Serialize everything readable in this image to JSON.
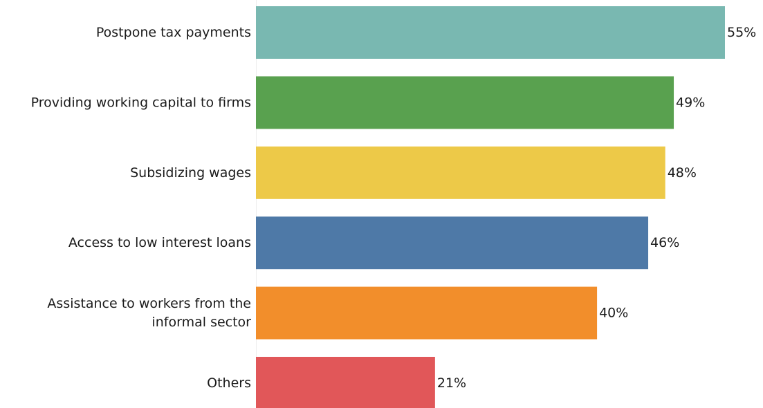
{
  "chart_data": {
    "type": "bar",
    "orientation": "horizontal",
    "title": "",
    "xlabel": "",
    "ylabel": "",
    "categories": [
      [
        "Postpone tax payments"
      ],
      [
        "Providing working capital to firms"
      ],
      [
        "Subsidizing wages"
      ],
      [
        "Access to low interest loans"
      ],
      [
        "Assistance to workers from the",
        "informal sector"
      ],
      [
        "Others"
      ]
    ],
    "values": [
      55,
      49,
      48,
      46,
      40,
      21
    ],
    "value_labels": [
      "55%",
      "49%",
      "48%",
      "46%",
      "40%",
      "21%"
    ],
    "colors": [
      "#79b8b1",
      "#59a14f",
      "#edc948",
      "#4e79a7",
      "#f28e2b",
      "#e15759"
    ],
    "xlim": [
      0,
      55
    ],
    "grid": false,
    "legend": "none"
  }
}
